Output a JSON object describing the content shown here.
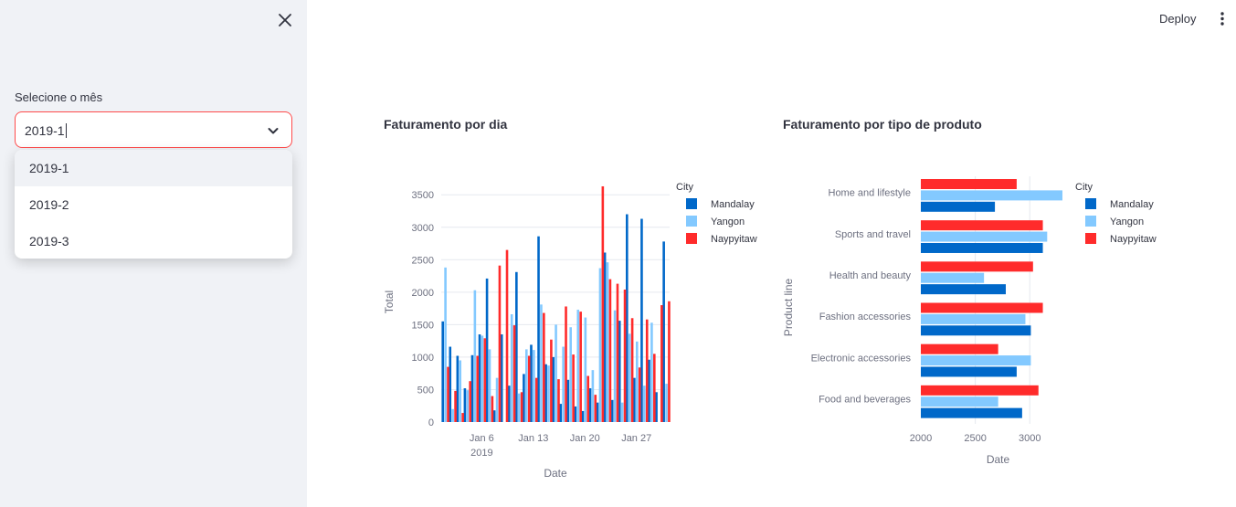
{
  "sidebar": {
    "close_icon": "close-icon",
    "select_label": "Selecione o mês",
    "select_value": "2019-1",
    "options": [
      "2019-1",
      "2019-2",
      "2019-3"
    ]
  },
  "header": {
    "deploy_label": "Deploy",
    "menu_icon": "more-vertical-icon"
  },
  "colors": {
    "Mandalay": "#0068c9",
    "Yangon": "#83c9ff",
    "Naypyitaw": "#ff2b2b",
    "accent": "#ff4b4b"
  },
  "chart_data": [
    {
      "type": "bar",
      "title": "Faturamento por dia",
      "xlabel": "Date",
      "ylabel": "Total",
      "ylim": [
        0,
        3700
      ],
      "yticks": [
        0,
        500,
        1000,
        1500,
        2000,
        2500,
        3000,
        3500
      ],
      "xticks": [
        "Jan 6\n2019",
        "Jan 13",
        "Jan 20",
        "Jan 27"
      ],
      "legend_title": "City",
      "legend_position": "right",
      "categories": [
        "Jan 1",
        "Jan 2",
        "Jan 3",
        "Jan 4",
        "Jan 5",
        "Jan 6",
        "Jan 7",
        "Jan 8",
        "Jan 9",
        "Jan 10",
        "Jan 11",
        "Jan 12",
        "Jan 13",
        "Jan 14",
        "Jan 15",
        "Jan 16",
        "Jan 17",
        "Jan 18",
        "Jan 19",
        "Jan 20",
        "Jan 21",
        "Jan 22",
        "Jan 23",
        "Jan 24",
        "Jan 25",
        "Jan 26",
        "Jan 27",
        "Jan 28",
        "Jan 29",
        "Jan 30",
        "Jan 31"
      ],
      "series": [
        {
          "name": "Mandalay",
          "values": [
            1550,
            1160,
            1020,
            520,
            1030,
            1350,
            2210,
            180,
            1350,
            560,
            2310,
            740,
            1190,
            2860,
            890,
            1000,
            280,
            650,
            240,
            170,
            520,
            300,
            2610,
            340,
            1560,
            3200,
            680,
            3130,
            960,
            460,
            2780
          ]
        },
        {
          "name": "Yangon",
          "values": [
            2380,
            200,
            950,
            490,
            2030,
            1330,
            1120,
            680,
            0,
            1660,
            440,
            1120,
            1110,
            1810,
            870,
            1500,
            1160,
            1460,
            1730,
            1610,
            800,
            2370,
            2460,
            1720,
            300,
            1360,
            1240,
            560,
            1530,
            0,
            590
          ]
        },
        {
          "name": "Naypyitaw",
          "values": [
            850,
            480,
            140,
            630,
            1020,
            1290,
            400,
            2410,
            2650,
            1490,
            460,
            1020,
            680,
            1680,
            1270,
            660,
            1780,
            1040,
            1700,
            710,
            420,
            3630,
            2200,
            2130,
            2040,
            1600,
            840,
            1580,
            1050,
            1800,
            1860
          ]
        }
      ]
    },
    {
      "type": "bar",
      "orientation": "horizontal",
      "title": "Faturamento por tipo de produto",
      "xlabel": "Date",
      "ylabel": "Product line",
      "xlim": [
        2000,
        3300
      ],
      "xticks": [
        2000,
        2500,
        3000
      ],
      "legend_title": "City",
      "legend_position": "right",
      "categories": [
        "Home and lifestyle",
        "Sports and travel",
        "Health and beauty",
        "Fashion accessories",
        "Electronic accessories",
        "Food and beverages"
      ],
      "series": [
        {
          "name": "Mandalay",
          "values": [
            2680,
            3120,
            2780,
            3010,
            2880,
            2930
          ]
        },
        {
          "name": "Yangon",
          "values": [
            3300,
            3160,
            2580,
            2960,
            3010,
            2710
          ]
        },
        {
          "name": "Naypyitaw",
          "values": [
            2880,
            3120,
            3030,
            3120,
            2710,
            3080
          ]
        }
      ]
    }
  ]
}
